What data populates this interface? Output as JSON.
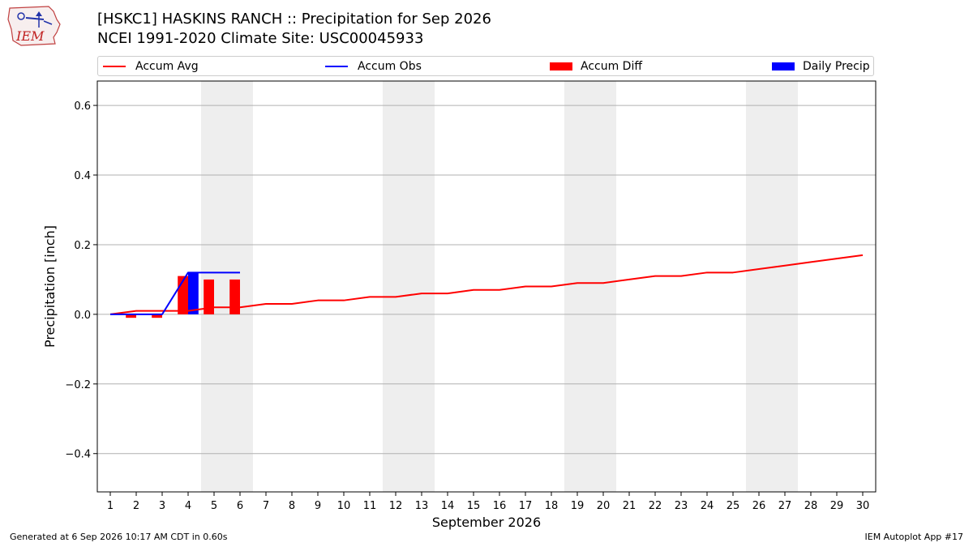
{
  "header": {
    "logo_text": "IEM",
    "title_line1": "[HSKC1] HASKINS RANCH :: Precipitation for Sep 2026",
    "title_line2": "NCEI 1991-2020 Climate Site: USC00045933"
  },
  "legend": {
    "items": [
      {
        "label": "Accum Avg",
        "color": "#ff0000",
        "kind": "line"
      },
      {
        "label": "Accum Obs",
        "color": "#0000ff",
        "kind": "line"
      },
      {
        "label": "Accum Diff",
        "color": "#ff0000",
        "kind": "box"
      },
      {
        "label": "Daily Precip",
        "color": "#0000ff",
        "kind": "box"
      }
    ]
  },
  "chart_data": {
    "type": "bar",
    "xlabel": "September 2026",
    "ylabel": "Precipitation [inch]",
    "xlim": [
      0.5,
      30.5
    ],
    "ylim": [
      -0.51,
      0.67
    ],
    "x_ticks": [
      1,
      2,
      3,
      4,
      5,
      6,
      7,
      8,
      9,
      10,
      11,
      12,
      13,
      14,
      15,
      16,
      17,
      18,
      19,
      20,
      21,
      22,
      23,
      24,
      25,
      26,
      27,
      28,
      29,
      30
    ],
    "y_ticks": [
      -0.4,
      -0.2,
      0.0,
      0.2,
      0.4,
      0.6
    ],
    "y_tick_labels": [
      "−0.4",
      "−0.2",
      "0.0",
      "0.2",
      "0.4",
      "0.6"
    ],
    "grid": "horizontal",
    "weekend_shading": [
      [
        4.5,
        6.5
      ],
      [
        11.5,
        13.5
      ],
      [
        18.5,
        20.5
      ],
      [
        25.5,
        27.5
      ]
    ],
    "series": [
      {
        "name": "Accum Avg",
        "kind": "line",
        "color": "#ff0000",
        "x": [
          1,
          2,
          3,
          4,
          5,
          6,
          7,
          8,
          9,
          10,
          11,
          12,
          13,
          14,
          15,
          16,
          17,
          18,
          19,
          20,
          21,
          22,
          23,
          24,
          25,
          26,
          27,
          28,
          29,
          30
        ],
        "values": [
          0.0,
          0.01,
          0.01,
          0.01,
          0.02,
          0.02,
          0.03,
          0.03,
          0.04,
          0.04,
          0.05,
          0.05,
          0.06,
          0.06,
          0.07,
          0.07,
          0.08,
          0.08,
          0.09,
          0.09,
          0.1,
          0.11,
          0.11,
          0.12,
          0.12,
          0.13,
          0.14,
          0.15,
          0.16,
          0.17
        ]
      },
      {
        "name": "Accum Obs",
        "kind": "line",
        "color": "#0000ff",
        "x": [
          1,
          2,
          3,
          4,
          5,
          6
        ],
        "values": [
          0.0,
          0.0,
          0.0,
          0.12,
          0.12,
          0.12
        ]
      },
      {
        "name": "Accum Diff",
        "kind": "bar",
        "color": "#ff0000",
        "x": [
          1,
          2,
          3,
          4,
          5,
          6
        ],
        "values": [
          0.0,
          -0.01,
          -0.01,
          0.11,
          0.1,
          0.1
        ]
      },
      {
        "name": "Daily Precip",
        "kind": "bar",
        "color": "#0000ff",
        "x": [
          1,
          2,
          3,
          4,
          5,
          6
        ],
        "values": [
          0.0,
          0.0,
          0.0,
          0.12,
          0.0,
          0.0
        ]
      }
    ]
  },
  "footer": {
    "generated": "Generated at 6 Sep 2026 10:17 AM CDT in 0.60s",
    "app": "IEM Autoplot App #17"
  }
}
